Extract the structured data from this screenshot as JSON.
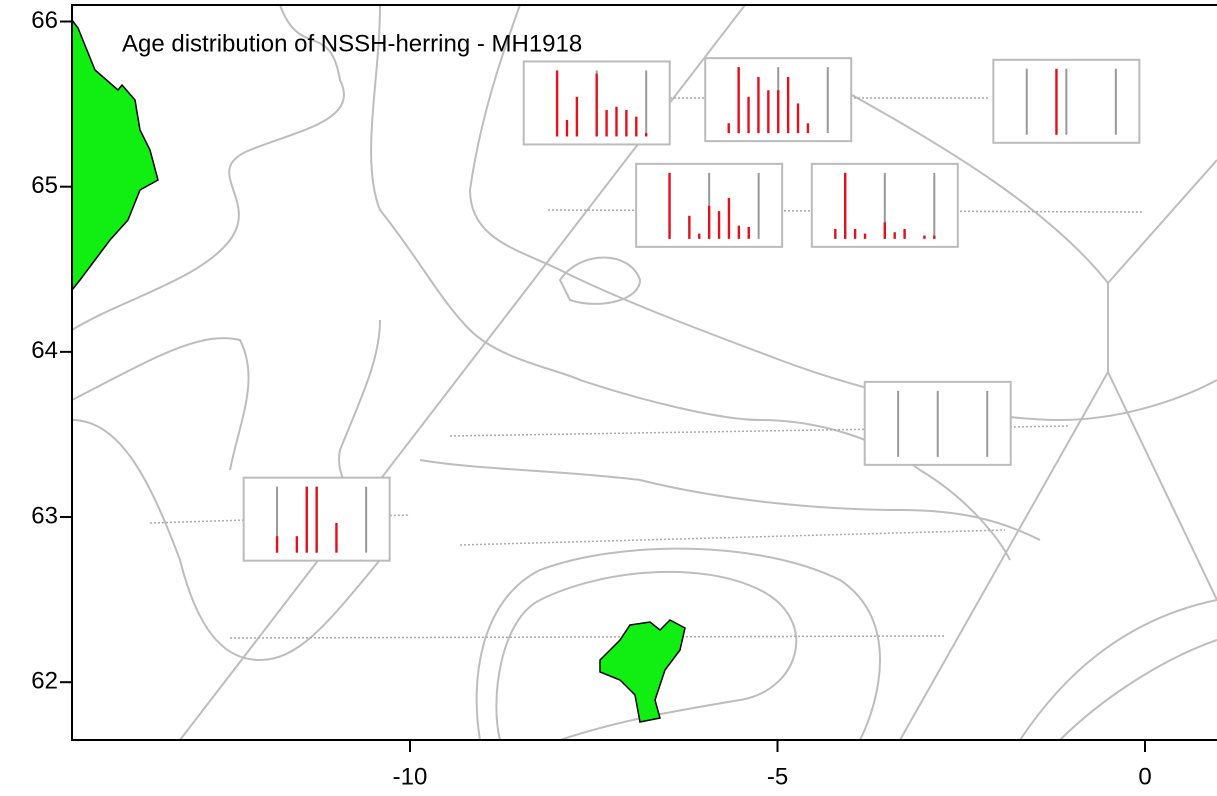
{
  "chart_data": {
    "type": "map-bars",
    "title": "Age distribution of NSSH-herring - MH1918",
    "xlim": [
      -14.6,
      0.98
    ],
    "ylim": [
      61.65,
      66.1
    ],
    "xticks": [
      -10,
      -5,
      0
    ],
    "yticks": [
      62,
      63,
      64,
      65,
      66
    ],
    "ref_ages": [
      1,
      5,
      10
    ],
    "bar_color": "#e3101e",
    "ref_color": "#999999",
    "insets": [
      {
        "lon": -7.46,
        "lat": 65.51,
        "values": [
          0,
          1.0,
          0.25,
          0.6,
          0,
          0.95,
          0.4,
          0.45,
          0.4,
          0.3,
          0.05
        ]
      },
      {
        "lon": -4.99,
        "lat": 65.53,
        "values": [
          0.15,
          1.0,
          0.55,
          0.85,
          0.65,
          0.65,
          0.85,
          0.45,
          0.15,
          0,
          0
        ]
      },
      {
        "lon": -1.07,
        "lat": 65.52,
        "values": [
          0,
          0,
          0,
          0,
          1.0,
          0,
          0,
          0,
          0,
          0,
          0
        ]
      },
      {
        "lon": -5.93,
        "lat": 64.89,
        "values": [
          0,
          1.0,
          0,
          0.35,
          0.08,
          0.5,
          0.42,
          0.62,
          0.2,
          0.18,
          0
        ]
      },
      {
        "lon": -3.54,
        "lat": 64.89,
        "values": [
          0.15,
          1.0,
          0.15,
          0.08,
          0,
          0.25,
          0.1,
          0.15,
          0,
          0.05,
          0.05
        ]
      },
      {
        "lon": -2.82,
        "lat": 63.57,
        "values": [
          0,
          0,
          0,
          0,
          0,
          0,
          0,
          0,
          0,
          0,
          0
        ]
      },
      {
        "lon": -11.27,
        "lat": 62.99,
        "values": [
          0,
          0.25,
          0,
          0.25,
          1.0,
          1.0,
          0,
          0.45,
          0,
          0,
          0
        ]
      }
    ]
  }
}
